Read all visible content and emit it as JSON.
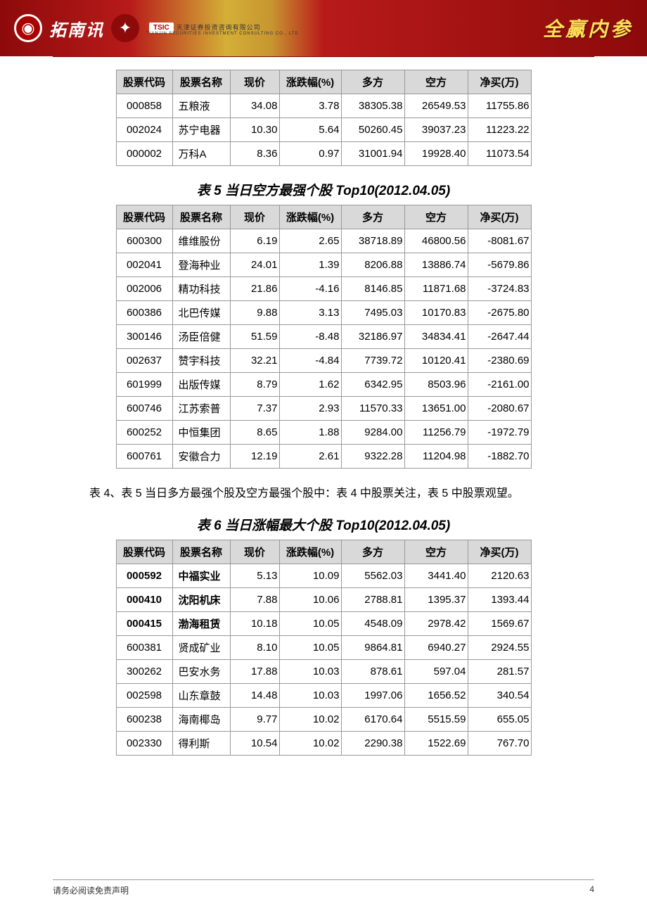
{
  "banner": {
    "brand": "拓南讯",
    "badge_tsic": "TSIC",
    "company_cn": "天津证券投资咨询有限公司",
    "company_en": "TIANJIN SECURITIES INVESTMENT CONSULTING CO., LTD",
    "right_text": "全赢内参"
  },
  "columns": [
    "股票代码",
    "股票名称",
    "现价",
    "涨跌幅(%)",
    "多方",
    "空方",
    "净买(万)"
  ],
  "table4_tail": {
    "rows": [
      {
        "code": "000858",
        "name": "五粮液",
        "price": "34.08",
        "chg": "3.78",
        "buy": "38305.38",
        "sell": "26549.53",
        "net": "11755.86",
        "bold": false
      },
      {
        "code": "002024",
        "name": "苏宁电器",
        "price": "10.30",
        "chg": "5.64",
        "buy": "50260.45",
        "sell": "39037.23",
        "net": "11223.22",
        "bold": false
      },
      {
        "code": "000002",
        "name": "万科A",
        "price": "8.36",
        "chg": "0.97",
        "buy": "31001.94",
        "sell": "19928.40",
        "net": "11073.54",
        "bold": false
      }
    ]
  },
  "table5": {
    "title": "表 5   当日空方最强个股 Top10(2012.04.05)",
    "rows": [
      {
        "code": "600300",
        "name": "维维股份",
        "price": "6.19",
        "chg": "2.65",
        "buy": "38718.89",
        "sell": "46800.56",
        "net": "-8081.67",
        "bold": false
      },
      {
        "code": "002041",
        "name": "登海种业",
        "price": "24.01",
        "chg": "1.39",
        "buy": "8206.88",
        "sell": "13886.74",
        "net": "-5679.86",
        "bold": false
      },
      {
        "code": "002006",
        "name": "精功科技",
        "price": "21.86",
        "chg": "-4.16",
        "buy": "8146.85",
        "sell": "11871.68",
        "net": "-3724.83",
        "bold": false
      },
      {
        "code": "600386",
        "name": "北巴传媒",
        "price": "9.88",
        "chg": "3.13",
        "buy": "7495.03",
        "sell": "10170.83",
        "net": "-2675.80",
        "bold": false
      },
      {
        "code": "300146",
        "name": "汤臣倍健",
        "price": "51.59",
        "chg": "-8.48",
        "buy": "32186.97",
        "sell": "34834.41",
        "net": "-2647.44",
        "bold": false
      },
      {
        "code": "002637",
        "name": "赞宇科技",
        "price": "32.21",
        "chg": "-4.84",
        "buy": "7739.72",
        "sell": "10120.41",
        "net": "-2380.69",
        "bold": false
      },
      {
        "code": "601999",
        "name": "出版传媒",
        "price": "8.79",
        "chg": "1.62",
        "buy": "6342.95",
        "sell": "8503.96",
        "net": "-2161.00",
        "bold": false
      },
      {
        "code": "600746",
        "name": "江苏索普",
        "price": "7.37",
        "chg": "2.93",
        "buy": "11570.33",
        "sell": "13651.00",
        "net": "-2080.67",
        "bold": false
      },
      {
        "code": "600252",
        "name": "中恒集团",
        "price": "8.65",
        "chg": "1.88",
        "buy": "9284.00",
        "sell": "11256.79",
        "net": "-1972.79",
        "bold": false
      },
      {
        "code": "600761",
        "name": "安徽合力",
        "price": "12.19",
        "chg": "2.61",
        "buy": "9322.28",
        "sell": "11204.98",
        "net": "-1882.70",
        "bold": false
      }
    ]
  },
  "paragraph45": "表 4、表 5 当日多方最强个股及空方最强个股中：表 4 中股票关注，表 5 中股票观望。",
  "table6": {
    "title": "表 6   当日涨幅最大个股 Top10(2012.04.05)",
    "rows": [
      {
        "code": "000592",
        "name": "中福实业",
        "price": "5.13",
        "chg": "10.09",
        "buy": "5562.03",
        "sell": "3441.40",
        "net": "2120.63",
        "bold": true
      },
      {
        "code": "000410",
        "name": "沈阳机床",
        "price": "7.88",
        "chg": "10.06",
        "buy": "2788.81",
        "sell": "1395.37",
        "net": "1393.44",
        "bold": true
      },
      {
        "code": "000415",
        "name": "渤海租赁",
        "price": "10.18",
        "chg": "10.05",
        "buy": "4548.09",
        "sell": "2978.42",
        "net": "1569.67",
        "bold": true
      },
      {
        "code": "600381",
        "name": "贤成矿业",
        "price": "8.10",
        "chg": "10.05",
        "buy": "9864.81",
        "sell": "6940.27",
        "net": "2924.55",
        "bold": false
      },
      {
        "code": "300262",
        "name": "巴安水务",
        "price": "17.88",
        "chg": "10.03",
        "buy": "878.61",
        "sell": "597.04",
        "net": "281.57",
        "bold": false
      },
      {
        "code": "002598",
        "name": "山东章鼓",
        "price": "14.48",
        "chg": "10.03",
        "buy": "1997.06",
        "sell": "1656.52",
        "net": "340.54",
        "bold": false
      },
      {
        "code": "600238",
        "name": "海南椰岛",
        "price": "9.77",
        "chg": "10.02",
        "buy": "6170.64",
        "sell": "5515.59",
        "net": "655.05",
        "bold": false
      },
      {
        "code": "002330",
        "name": "得利斯",
        "price": "10.54",
        "chg": "10.02",
        "buy": "2290.38",
        "sell": "1522.69",
        "net": "767.70",
        "bold": false
      }
    ]
  },
  "footer": {
    "disclaimer": "请务必阅读免责声明",
    "page_number": "4"
  },
  "style": {
    "header_bg": "#d9d9d9",
    "border_color": "#999999",
    "banner_accent": "#8d0a0a",
    "banner_gold": "#d4af37",
    "banner_text": "#ffe056"
  }
}
